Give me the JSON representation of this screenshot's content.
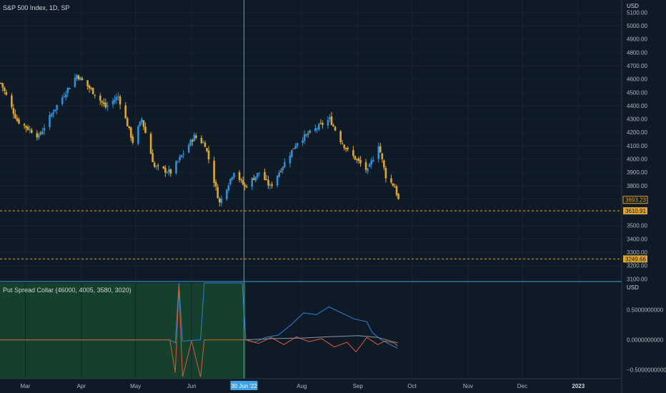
{
  "symbol": "S&P 500 Index, 1D, SP",
  "indicator": "Put Spread Collar (46000, 4005, 3580, 3020)",
  "currency_main": "USD",
  "currency_ind": "USD",
  "colors": {
    "up": "#2f8fd6",
    "down": "#e0a52e",
    "crosshair": "#3fa0e6",
    "level": "#e0a52e",
    "ind_blue": "#2f7fe0",
    "ind_red": "#e05a3a",
    "ind_gray": "#8a939e",
    "shade": "#15402c"
  },
  "chart_data": [
    {
      "type": "candlestick",
      "title": "S&P 500 Index, 1D, SP",
      "x_range": [
        "2022-02-15",
        "2023-01-25"
      ],
      "ylim": [
        3080,
        5140
      ],
      "ylabel": "USD",
      "y_ticks": [
        3100,
        3200,
        3300,
        3400,
        3500,
        3600,
        3700,
        3800,
        3900,
        4000,
        4100,
        4200,
        4300,
        4400,
        4500,
        4600,
        4700,
        4800,
        4900,
        5000,
        5100
      ],
      "x_ticks": [
        {
          "date": "2022-03-01",
          "label": "Mar"
        },
        {
          "date": "2022-04-01",
          "label": "Apr"
        },
        {
          "date": "2022-05-01",
          "label": "May"
        },
        {
          "date": "2022-06-01",
          "label": "Jun"
        },
        {
          "date": "2022-08-01",
          "label": "Aug"
        },
        {
          "date": "2022-09-01",
          "label": "Sep"
        },
        {
          "date": "2022-10-01",
          "label": "Oct"
        },
        {
          "date": "2022-11-01",
          "label": "Nov"
        },
        {
          "date": "2022-12-01",
          "label": "Dec"
        },
        {
          "date": "2023-01-01",
          "label": "2023",
          "bold": true
        }
      ],
      "crosshair_label": "30 Jun '22",
      "crosshair_date": "2022-06-30",
      "price_tags": [
        {
          "label": "3693.23",
          "value": 3693.23,
          "style": "outline"
        },
        {
          "label": "3610.91",
          "value": 3610.91,
          "style": "solid"
        },
        {
          "label": "3249.66",
          "value": 3249.66,
          "style": "solid"
        }
      ],
      "levels": [
        3610.91,
        3249.66
      ],
      "anchors": [
        {
          "date": "2022-02-15",
          "close": 4570
        },
        {
          "date": "2022-02-24",
          "close": 4290
        },
        {
          "date": "2022-03-08",
          "close": 4170
        },
        {
          "date": "2022-03-16",
          "close": 4360
        },
        {
          "date": "2022-03-29",
          "close": 4630
        },
        {
          "date": "2022-04-08",
          "close": 4490
        },
        {
          "date": "2022-04-14",
          "close": 4390
        },
        {
          "date": "2022-04-21",
          "close": 4470
        },
        {
          "date": "2022-04-29",
          "close": 4130
        },
        {
          "date": "2022-05-04",
          "close": 4300
        },
        {
          "date": "2022-05-11",
          "close": 3940
        },
        {
          "date": "2022-05-20",
          "close": 3900
        },
        {
          "date": "2022-06-02",
          "close": 4170
        },
        {
          "date": "2022-06-08",
          "close": 4110
        },
        {
          "date": "2022-06-16",
          "close": 3670
        },
        {
          "date": "2022-06-24",
          "close": 3910
        },
        {
          "date": "2022-06-30",
          "close": 3790
        },
        {
          "date": "2022-07-08",
          "close": 3900
        },
        {
          "date": "2022-07-14",
          "close": 3790
        },
        {
          "date": "2022-07-29",
          "close": 4130
        },
        {
          "date": "2022-08-16",
          "close": 4300
        },
        {
          "date": "2022-08-22",
          "close": 4140
        },
        {
          "date": "2022-08-26",
          "close": 4060
        },
        {
          "date": "2022-09-06",
          "close": 3910
        },
        {
          "date": "2022-09-12",
          "close": 4110
        },
        {
          "date": "2022-09-16",
          "close": 3870
        },
        {
          "date": "2022-09-21",
          "close": 3790
        },
        {
          "date": "2022-09-23",
          "close": 3693
        }
      ]
    },
    {
      "type": "line",
      "title": "Put Spread Collar (46000, 4005, 3580, 3020)",
      "ylabel": "USD",
      "ylim": [
        -0.65,
        0.95
      ],
      "y_ticks": [
        {
          "value": 0.5,
          "label": "0.5000000000"
        },
        {
          "value": 0.0,
          "label": "0.0000000000"
        },
        {
          "value": -0.5,
          "label": "−0.5000000000"
        }
      ],
      "shaded_range": [
        "2022-02-15",
        "2022-07-01"
      ],
      "series": [
        {
          "color": "blue",
          "points": [
            [
              "2022-02-15",
              0.0
            ],
            [
              "2022-05-20",
              0.0
            ],
            [
              "2022-05-23",
              -0.05
            ],
            [
              "2022-05-25",
              0.95
            ],
            [
              "2022-05-27",
              -0.02
            ],
            [
              "2022-06-06",
              0.0
            ],
            [
              "2022-06-08",
              0.95
            ],
            [
              "2022-06-29",
              0.95
            ],
            [
              "2022-07-01",
              0.0
            ],
            [
              "2022-07-06",
              -0.04
            ],
            [
              "2022-07-12",
              0.04
            ],
            [
              "2022-07-19",
              0.08
            ],
            [
              "2022-07-26",
              0.25
            ],
            [
              "2022-08-02",
              0.45
            ],
            [
              "2022-08-09",
              0.42
            ],
            [
              "2022-08-16",
              0.55
            ],
            [
              "2022-08-23",
              0.45
            ],
            [
              "2022-08-30",
              0.35
            ],
            [
              "2022-09-06",
              0.3
            ],
            [
              "2022-09-09",
              0.12
            ],
            [
              "2022-09-14",
              0.0
            ],
            [
              "2022-09-19",
              -0.08
            ],
            [
              "2022-09-23",
              -0.14
            ]
          ]
        },
        {
          "color": "red",
          "points": [
            [
              "2022-02-15",
              0.0
            ],
            [
              "2022-05-20",
              0.0
            ],
            [
              "2022-05-23",
              -0.55
            ],
            [
              "2022-05-25",
              0.9
            ],
            [
              "2022-05-27",
              -0.62
            ],
            [
              "2022-06-01",
              -0.02
            ],
            [
              "2022-06-06",
              -0.62
            ],
            [
              "2022-06-08",
              0.0
            ],
            [
              "2022-06-29",
              0.0
            ],
            [
              "2022-07-01",
              0.0
            ],
            [
              "2022-07-08",
              -0.06
            ],
            [
              "2022-07-15",
              0.04
            ],
            [
              "2022-07-22",
              -0.08
            ],
            [
              "2022-07-29",
              0.05
            ],
            [
              "2022-08-05",
              -0.03
            ],
            [
              "2022-08-12",
              0.02
            ],
            [
              "2022-08-19",
              -0.12
            ],
            [
              "2022-08-26",
              -0.04
            ],
            [
              "2022-08-31",
              -0.2
            ],
            [
              "2022-09-06",
              0.04
            ],
            [
              "2022-09-12",
              -0.08
            ],
            [
              "2022-09-16",
              -0.02
            ],
            [
              "2022-09-21",
              -0.05
            ],
            [
              "2022-09-23",
              -0.1
            ]
          ]
        },
        {
          "color": "gray",
          "points": [
            [
              "2022-07-01",
              0.0
            ],
            [
              "2022-07-15",
              0.02
            ],
            [
              "2022-08-01",
              0.03
            ],
            [
              "2022-08-15",
              0.05
            ],
            [
              "2022-09-01",
              0.07
            ],
            [
              "2022-09-12",
              0.04
            ],
            [
              "2022-09-23",
              -0.05
            ]
          ]
        }
      ]
    }
  ]
}
